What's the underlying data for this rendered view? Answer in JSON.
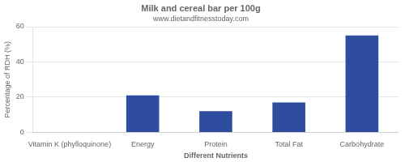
{
  "chart_data": {
    "type": "bar",
    "title": "Milk and cereal bar per 100g",
    "subtitle": "www.dietandfitnesstoday.com",
    "xlabel": "Different Nutrients",
    "ylabel": "Percentage of RDH (%)",
    "categories": [
      "Vitamin K (phylloquinone)",
      "Energy",
      "Protein",
      "Total Fat",
      "Carbohydrate"
    ],
    "values": [
      0,
      21,
      12,
      17,
      55
    ],
    "color": "#2e4d9e",
    "ylim": [
      0,
      60
    ],
    "yticks": [
      0,
      20,
      40,
      60
    ],
    "grid": true
  }
}
